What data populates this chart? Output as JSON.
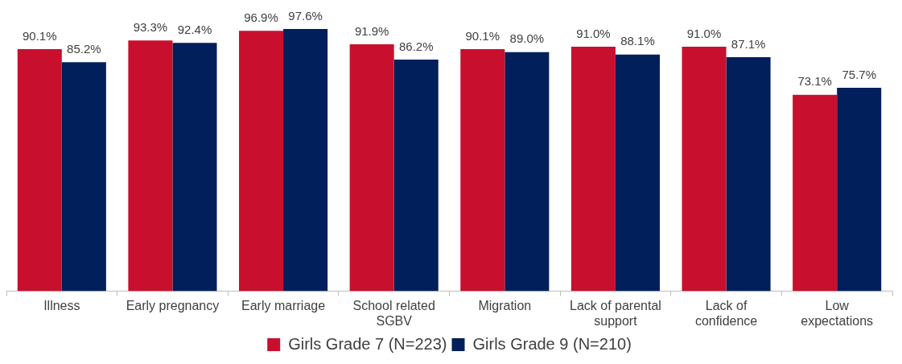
{
  "chart_data": {
    "type": "bar",
    "categories": [
      "Illness",
      "Early pregnancy",
      "Early marriage",
      "School related SGBV",
      "Migration",
      "Lack of parental support",
      "Lack of confidence",
      "Low expectations"
    ],
    "series": [
      {
        "name": "Girls Grade 7 (N=223)",
        "color": "#c8102e",
        "values": [
          90.1,
          93.3,
          96.9,
          91.9,
          90.1,
          91.0,
          91.0,
          73.1
        ],
        "value_labels": [
          "90.1%",
          "93.3%",
          "96.9%",
          "91.9%",
          "90.1%",
          "91.0%",
          "91.0%",
          "73.1%"
        ]
      },
      {
        "name": "Girls Grade 9 (N=210)",
        "color": "#001f5b",
        "values": [
          85.2,
          92.4,
          97.6,
          86.2,
          89.0,
          88.1,
          87.1,
          75.7
        ],
        "value_labels": [
          "85.2%",
          "92.4%",
          "97.6%",
          "86.2%",
          "89.0%",
          "88.1%",
          "87.1%",
          "75.7%"
        ]
      }
    ],
    "legend": "bottom"
  }
}
